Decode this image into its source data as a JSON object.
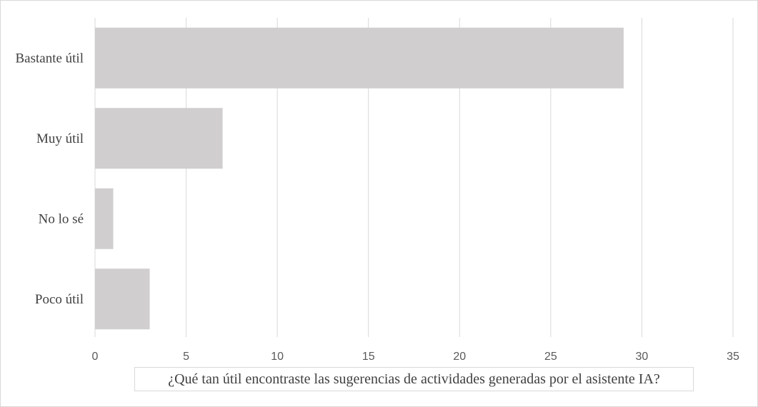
{
  "chart_data": {
    "type": "bar",
    "orientation": "horizontal",
    "categories": [
      "Bastante útil",
      "Muy útil",
      "No lo sé",
      "Poco útil"
    ],
    "values": [
      29,
      7,
      1,
      3
    ],
    "xlabel": "¿Qué tan útil encontraste las sugerencias de actividades generadas por el asistente IA?",
    "ylabel": "",
    "title": "",
    "xlim": [
      0,
      35
    ],
    "xticks": [
      0,
      5,
      10,
      15,
      20,
      25,
      30,
      35
    ],
    "grid": "vertical",
    "legend": "none",
    "bar_color": "#d0cecf",
    "grid_color": "#d9d9d9"
  }
}
